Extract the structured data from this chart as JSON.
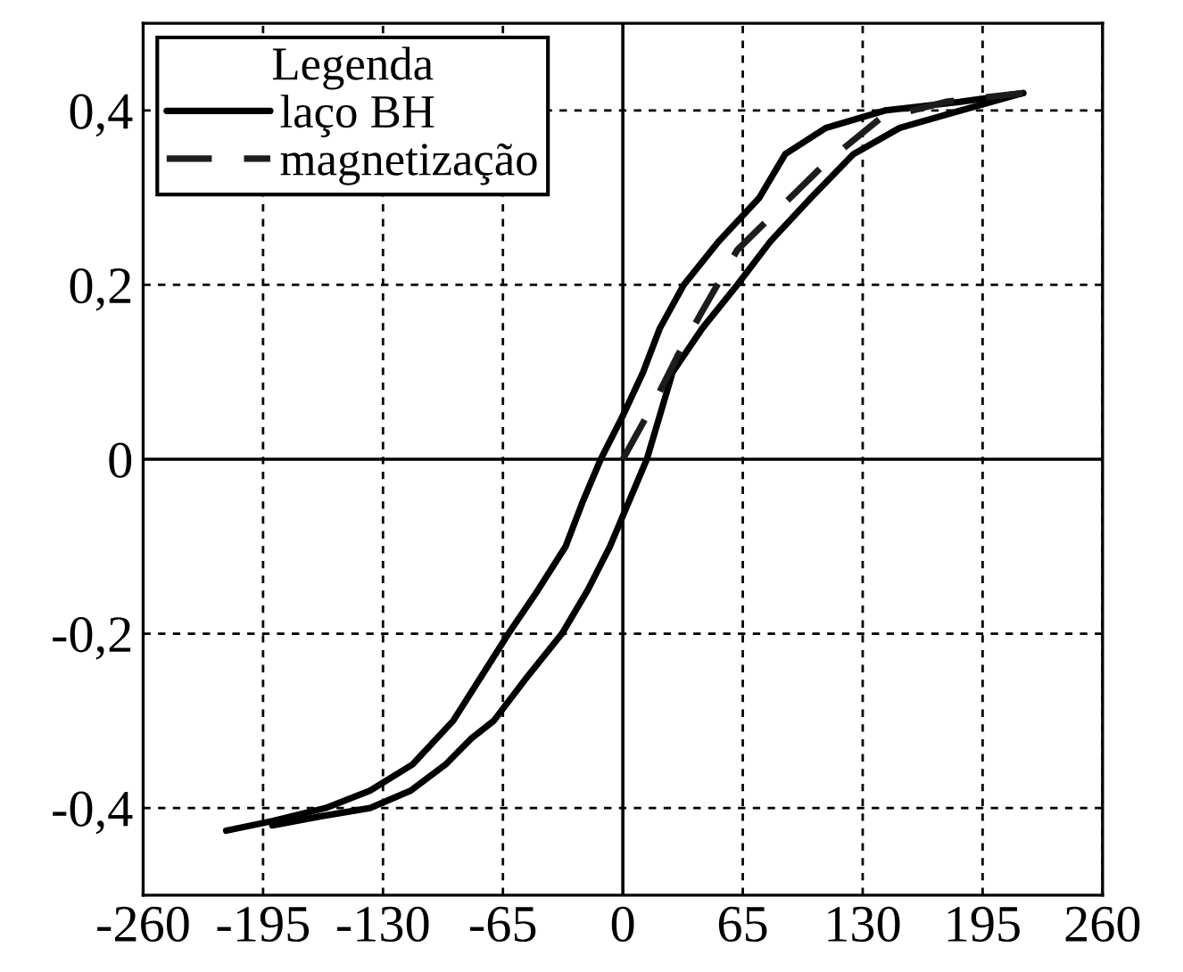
{
  "chart_data": {
    "type": "line",
    "legend_title": "Legenda",
    "series": [
      {
        "name": "laço BH",
        "color": "#000000",
        "line_style": "solid",
        "x": [
          -215,
          -190,
          -161,
          -137,
          -114,
          -92,
          -77,
          -62,
          -46,
          -31,
          -22,
          -12,
          0,
          11,
          20,
          33,
          52,
          74,
          88,
          110,
          142,
          183,
          217
        ],
        "values": [
          -0.426,
          -0.415,
          -0.4,
          -0.38,
          -0.35,
          -0.3,
          -0.25,
          -0.2,
          -0.15,
          -0.1,
          -0.05,
          0,
          0.05,
          0.1,
          0.15,
          0.2,
          0.25,
          0.3,
          0.35,
          0.38,
          0.4,
          0.41,
          0.42
        ]
      },
      {
        "color": "#000000",
        "line_style": "solid",
        "x": [
          -190,
          -165,
          -137,
          -115,
          -96,
          -82,
          -70,
          -52,
          -33,
          -19,
          -7,
          3,
          13,
          27,
          43,
          62,
          80,
          102,
          125,
          150,
          183,
          217
        ],
        "values": [
          -0.42,
          -0.41,
          -0.4,
          -0.38,
          -0.35,
          -0.32,
          -0.3,
          -0.25,
          -0.2,
          -0.15,
          -0.1,
          -0.05,
          0,
          0.1,
          0.15,
          0.2,
          0.25,
          0.3,
          0.35,
          0.38,
          0.4,
          0.42
        ]
      },
      {
        "name": "magnetização",
        "color": "#1c1c1c",
        "line_style": "dashed",
        "x": [
          0,
          17,
          30,
          42,
          62,
          86,
          110,
          139,
          175,
          217
        ],
        "values": [
          0,
          0.065,
          0.12,
          0.166,
          0.24,
          0.29,
          0.34,
          0.39,
          0.41,
          0.42
        ]
      }
    ],
    "xlim": [
      -260,
      260
    ],
    "xticks": [
      -260,
      -195,
      -130,
      -65,
      0,
      65,
      130,
      195,
      260
    ],
    "ylim": [
      -0.5,
      0.5
    ],
    "yticks": [
      {
        "value": -0.4,
        "label": "-0,4"
      },
      {
        "value": -0.2,
        "label": "-0,2"
      },
      0,
      {
        "value": 0.2,
        "label": "0,2"
      },
      {
        "value": 0.4,
        "label": "0,4"
      }
    ],
    "grid": true,
    "legend": "top left",
    "marker": "none"
  }
}
